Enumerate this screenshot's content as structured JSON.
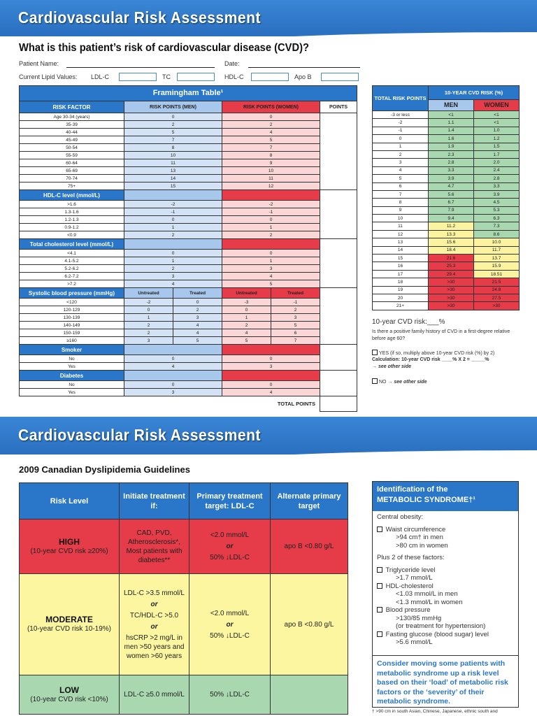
{
  "page1": {
    "title": "Cardiovascular Risk Assessment",
    "question": "What is this patient’s risk of cardiovascular disease (CVD)?",
    "patient_name_label": "Patient Name:",
    "date_label": "Date:",
    "lipid_label": "Current Lipid Values:",
    "lipid_fields": [
      "LDL-C",
      "TC",
      "HDL-C",
      "Apo B"
    ]
  },
  "framingham": {
    "title": "Framingham Table¹",
    "headers": [
      "RISK FACTOR",
      "RISK POINTS (MEN)",
      "RISK POINTS (WOMEN)",
      "POINTS"
    ],
    "sections": [
      {
        "label": "",
        "rows": [
          [
            "Age 30-34 (years)",
            "0",
            "0"
          ],
          [
            "35-39",
            "2",
            "2"
          ],
          [
            "40-44",
            "5",
            "4"
          ],
          [
            "45-49",
            "7",
            "5"
          ],
          [
            "50-54",
            "8",
            "7"
          ],
          [
            "55-59",
            "10",
            "8"
          ],
          [
            "60-64",
            "11",
            "9"
          ],
          [
            "65-69",
            "13",
            "10"
          ],
          [
            "70-74",
            "14",
            "11"
          ],
          [
            "75+",
            "15",
            "12"
          ]
        ]
      },
      {
        "label": "HDL-C level (mmol/L)",
        "rows": [
          [
            ">1.6",
            "-2",
            "-2"
          ],
          [
            "1.3-1.6",
            "-1",
            "-1"
          ],
          [
            "1.2-1.3",
            "0",
            "0"
          ],
          [
            "0.9-1.2",
            "1",
            "1"
          ],
          [
            "<0.9",
            "2",
            "2"
          ]
        ]
      },
      {
        "label": "Total cholesterol level (mmol/L)",
        "rows": [
          [
            "<4.1",
            "0",
            "0"
          ],
          [
            "4.1-5.2",
            "1",
            "1"
          ],
          [
            "5.2-6.2",
            "2",
            "3"
          ],
          [
            "6.2-7.2",
            "3",
            "4"
          ],
          [
            ">7.2",
            "4",
            "5"
          ]
        ]
      },
      {
        "label": "Systolic blood pressure (mmHg)",
        "split": [
          "Untreated",
          "Treated",
          "Untreated",
          "Treated"
        ],
        "rows": [
          [
            "<120",
            "-2",
            "0",
            "-3",
            "-1"
          ],
          [
            "120-129",
            "0",
            "2",
            "0",
            "2"
          ],
          [
            "130-139",
            "1",
            "3",
            "1",
            "3"
          ],
          [
            "140-149",
            "2",
            "4",
            "2",
            "5"
          ],
          [
            "150-159",
            "2",
            "4",
            "4",
            "6"
          ],
          [
            "≥160",
            "3",
            "5",
            "5",
            "7"
          ]
        ]
      },
      {
        "label": "Smoker",
        "rows": [
          [
            "No",
            "0",
            "0"
          ],
          [
            "Yes",
            "4",
            "3"
          ]
        ]
      },
      {
        "label": "Diabetes",
        "rows": [
          [
            "No",
            "0",
            "0"
          ],
          [
            "Yes",
            "3",
            "4"
          ]
        ]
      }
    ],
    "total_label": "TOTAL POINTS"
  },
  "cvd_table": {
    "header_points": "TOTAL RISK POINTS",
    "header_risk": "10-YEAR CVD RISK (%)",
    "men": "MEN",
    "women": "WOMEN",
    "rows": [
      [
        "-3 or less",
        "<1",
        "<1",
        "g",
        "g"
      ],
      [
        "-2",
        "1.1",
        "<1",
        "g",
        "g"
      ],
      [
        "-1",
        "1.4",
        "1.0",
        "g",
        "g"
      ],
      [
        "0",
        "1.6",
        "1.2",
        "g",
        "g"
      ],
      [
        "1",
        "1.9",
        "1.5",
        "g",
        "g"
      ],
      [
        "2",
        "2.3",
        "1.7",
        "g",
        "g"
      ],
      [
        "3",
        "2.8",
        "2.0",
        "g",
        "g"
      ],
      [
        "4",
        "3.3",
        "2.4",
        "g",
        "g"
      ],
      [
        "5",
        "3.9",
        "2.8",
        "g",
        "g"
      ],
      [
        "6",
        "4.7",
        "3.3",
        "g",
        "g"
      ],
      [
        "7",
        "5.6",
        "3.9",
        "g",
        "g"
      ],
      [
        "8",
        "6.7",
        "4.5",
        "g",
        "g"
      ],
      [
        "9",
        "7.9",
        "5.3",
        "g",
        "g"
      ],
      [
        "10",
        "9.4",
        "6.3",
        "g",
        "g"
      ],
      [
        "11",
        "11.2",
        "7.3",
        "y",
        "g"
      ],
      [
        "12",
        "13.3",
        "8.6",
        "y",
        "g"
      ],
      [
        "13",
        "15.6",
        "10.0",
        "y",
        "y"
      ],
      [
        "14",
        "18.4",
        "11.7",
        "y",
        "y"
      ],
      [
        "15",
        "21.6",
        "13.7",
        "r",
        "y"
      ],
      [
        "16",
        "25.3",
        "15.9",
        "r",
        "y"
      ],
      [
        "17",
        "29.4",
        "18.51",
        "r",
        "y"
      ],
      [
        "18",
        ">30",
        "21.5",
        "r",
        "r"
      ],
      [
        "19",
        ">30",
        "24.8",
        "r",
        "r"
      ],
      [
        "20",
        ">30",
        "27.5",
        "r",
        "r"
      ],
      [
        "21+",
        ">30",
        ">30",
        "r",
        "r"
      ]
    ],
    "colors": {
      "g": "#a9d8b0",
      "y": "#fbf3a0",
      "r": "#e63b48"
    }
  },
  "risk_notes": {
    "cvd_risk": "10-year CVD risk:___%",
    "family_q": "Is there a positive family history of CVD in a first-degree relative before age 60?",
    "yes": "YES (if so, multiply above 10-year CVD risk (%) by 2)",
    "calc": "Calculation: 10-year CVD risk ____% X 2 = _____%",
    "see1": "→ see other side",
    "no": "NO",
    "see2": "→ see other side"
  },
  "page2": {
    "title": "Cardiovascular Risk Assessment",
    "subtitle": "2009 Canadian Dyslipidemia Guidelines"
  },
  "guidelines": {
    "headers": [
      "Risk Level",
      "Initiate treatment if:",
      "Primary treatment target: LDL-C",
      "Alternate primary target"
    ],
    "high": {
      "level": "HIGH",
      "range": "(10-year CVD risk ≥20%)",
      "initiate": "CAD, PVD, Atherosclerosis*, Most patients with diabetes**",
      "primary1": "<2.0 mmol/L",
      "or": "or",
      "primary2": "50% ↓LDL-C",
      "alt": "apo B <0.80 g/L"
    },
    "moderate": {
      "level": "MODERATE",
      "range": "(10-year CVD risk 10-19%)",
      "init1": "LDL-C >3.5 mmol/L",
      "or": "or",
      "init2": "TC/HDL-C >5.0",
      "init3": "hsCRP >2 mg/L in men >50 years and women >60 years",
      "primary1": "<2.0 mmol/L",
      "primary2": "50% ↓LDL-C",
      "alt": "apo B <0.80 g/L"
    },
    "low": {
      "level": "LOW",
      "range": "(10-year CVD risk <10%)",
      "initiate": "LDL-C ≥5.0 mmol/L",
      "primary": "50% ↓LDL-C",
      "alt": ""
    }
  },
  "metabolic": {
    "title1": "Identification of the",
    "title2": "METABOLIC SYNDROME†¹",
    "central": "Central obesity:",
    "waist": "Waist circumference",
    "waist_m": ">94 cm† in men",
    "waist_w": ">80 cm in women",
    "plus": "Plus 2 of these factors:",
    "trig": "Triglyceride level",
    "trig_v": ">1.7 mmol/L",
    "hdl": "HDL-cholesterol",
    "hdl_m": "<1.03 mmol/L in men",
    "hdl_w": "<1.3 mmol/L in women",
    "bp": "Blood pressure",
    "bp_v": ">130/85 mmHg",
    "bp_t": "(or treatment for hypertension)",
    "glu": "Fasting glucose (blood sugar) level",
    "glu_v": ">5.6 mmol/L",
    "consider": "Consider moving some patients with metabolic syndrome up a risk level based on their ‘load’ of metabolic risk factors or the ‘severity’ of their metabolic syndrome.",
    "footnote": "† >90 cm in south Asian, Chinese, Japanese, ethnic south and"
  }
}
